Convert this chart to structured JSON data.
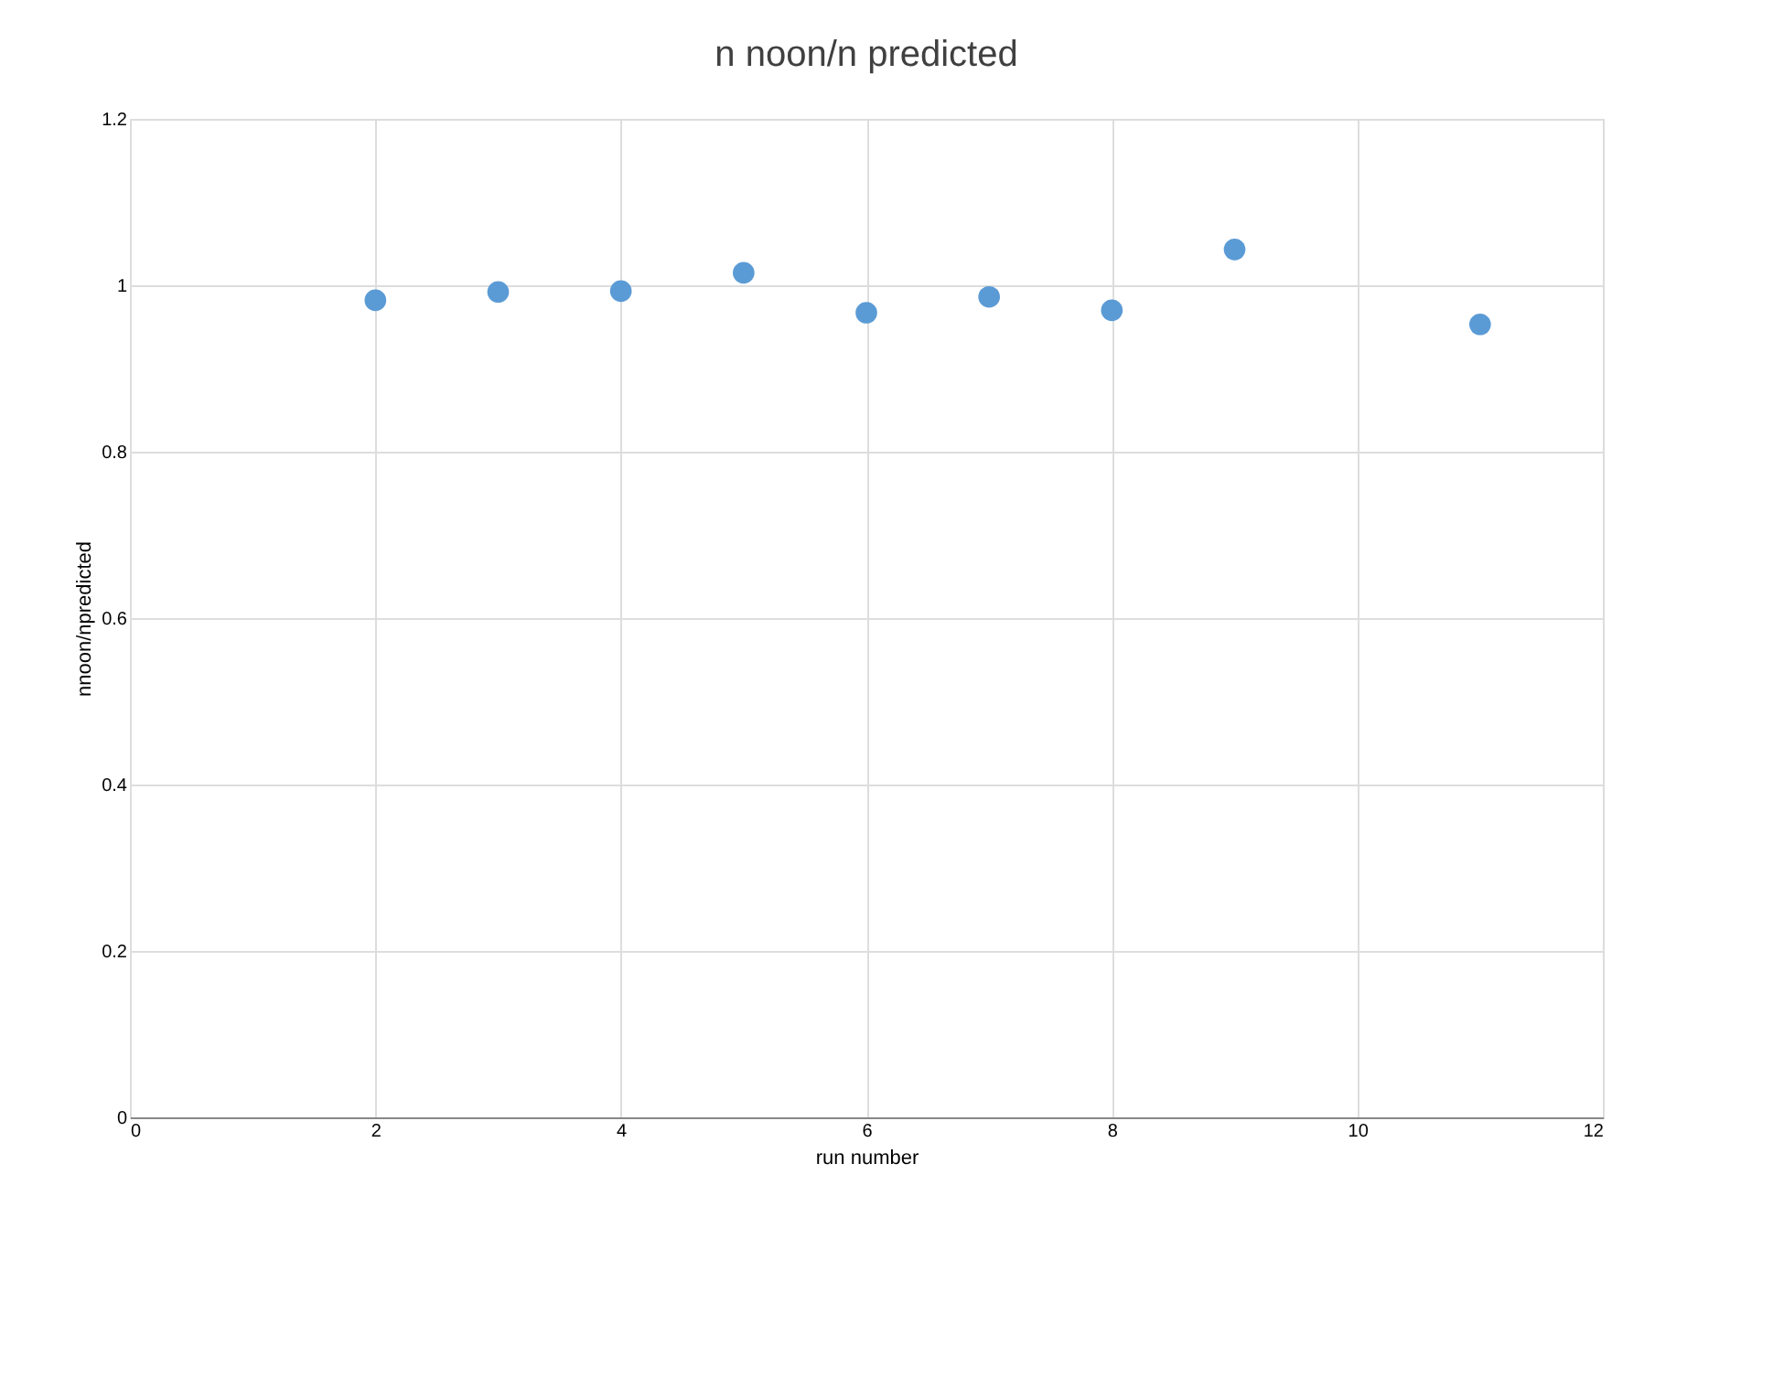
{
  "chart_data": {
    "type": "scatter",
    "title": "n noon/n predicted",
    "xlabel": "run number",
    "ylabel": "nnoon/npredicted",
    "x": [
      2,
      3,
      4,
      5,
      6,
      7,
      8,
      9,
      11
    ],
    "series": [
      {
        "color": "#5b9bd5",
        "values": [
          0.982,
          0.992,
          0.993,
          1.015,
          0.967,
          0.986,
          0.97,
          1.043,
          0.953
        ]
      }
    ],
    "xlim": [
      0,
      12
    ],
    "xticks": [
      0,
      2,
      4,
      6,
      8,
      10,
      12
    ],
    "ylim": [
      0,
      1.2
    ],
    "yticks": [
      0,
      0.2,
      0.4,
      0.6,
      0.8,
      1,
      1.2
    ],
    "grid": true,
    "marker": "circle"
  }
}
